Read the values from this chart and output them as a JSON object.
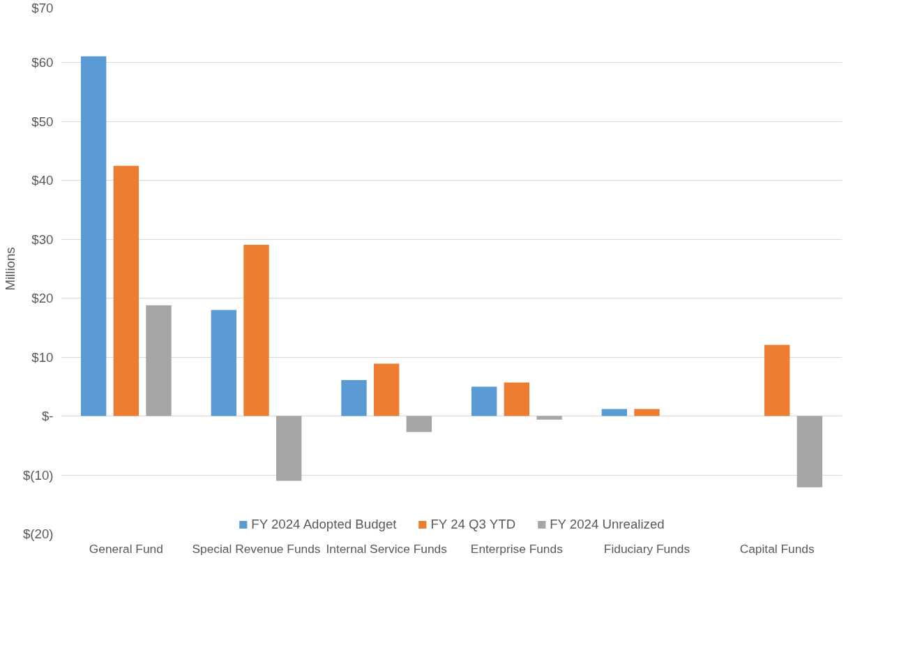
{
  "chart_data": {
    "type": "bar",
    "ylabel": "Millions",
    "categories": [
      "General Fund",
      "Special Revenue Funds",
      "Internal Service Funds",
      "Enterprise Funds",
      "Fiduciary Funds",
      "Capital Funds"
    ],
    "series": [
      {
        "name": "FY 2024 Adopted Budget",
        "color": "#5b9bd5",
        "values": [
          61.1,
          18.0,
          6.1,
          5.0,
          1.2,
          null
        ]
      },
      {
        "name": "FY 24 Q3 YTD",
        "color": "#ed7d31",
        "values": [
          42.5,
          29.1,
          8.9,
          5.7,
          1.2,
          12.1
        ]
      },
      {
        "name": "FY 2024 Unrealized",
        "color": "#a5a5a5",
        "values": [
          18.8,
          -11.0,
          -2.7,
          -0.6,
          null,
          -12.1
        ]
      }
    ],
    "ylim": [
      -20,
      70
    ],
    "yticks": [
      {
        "value": -20,
        "label": "$(20)"
      },
      {
        "value": -10,
        "label": "$(10)"
      },
      {
        "value": 0,
        "label": "$-"
      },
      {
        "value": 10,
        "label": "$10"
      },
      {
        "value": 20,
        "label": "$20"
      },
      {
        "value": 30,
        "label": "$30"
      },
      {
        "value": 40,
        "label": "$40"
      },
      {
        "value": 50,
        "label": "$50"
      },
      {
        "value": 60,
        "label": "$60"
      },
      {
        "value": 70,
        "label": "$70"
      }
    ],
    "grid": "y",
    "legend": "bottom"
  }
}
